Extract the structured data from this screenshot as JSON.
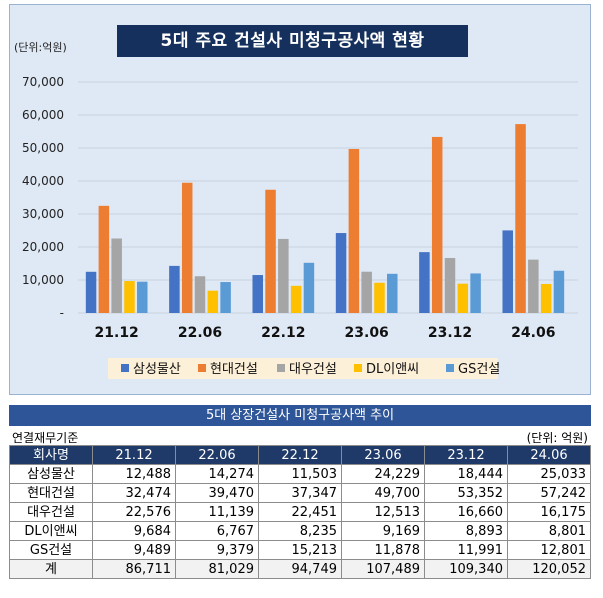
{
  "chart_data": {
    "type": "bar",
    "title": "5대 주요 건설사 미청구공사액 현황",
    "unit_label": "(단위:억원)",
    "xlabel": "",
    "ylabel": "",
    "ylim": [
      0,
      70000
    ],
    "y_ticks": [
      0,
      10000,
      20000,
      30000,
      40000,
      50000,
      60000,
      70000
    ],
    "y_tick_labels": [
      "-",
      "10,000",
      "20,000",
      "30,000",
      "40,000",
      "50,000",
      "60,000",
      "70,000"
    ],
    "categories": [
      "21.12",
      "22.06",
      "22.12",
      "23.06",
      "23.12",
      "24.06"
    ],
    "series": [
      {
        "name": "삼성물산",
        "color": "#4472c4",
        "values": [
          12488,
          14274,
          11503,
          24229,
          18444,
          25033
        ]
      },
      {
        "name": "현대건설",
        "color": "#ed7d31",
        "values": [
          32474,
          39470,
          37347,
          49700,
          53352,
          57242
        ]
      },
      {
        "name": "대우건설",
        "color": "#a5a5a5",
        "values": [
          22576,
          11139,
          22451,
          12513,
          16660,
          16175
        ]
      },
      {
        "name": "DL이앤씨",
        "color": "#ffc000",
        "values": [
          9684,
          6767,
          8235,
          9169,
          8893,
          8801
        ]
      },
      {
        "name": "GS건설",
        "color": "#5b9bd5",
        "values": [
          9489,
          9379,
          15213,
          11878,
          11991,
          12801
        ]
      }
    ],
    "grid": true,
    "legend": "bottom"
  },
  "table": {
    "title": "5대 상장건설사 미청구공사액 추이",
    "basis": "연결재무기준",
    "unit": "(단위: 억원)",
    "headers": [
      "회사명",
      "21.12",
      "22.06",
      "22.12",
      "23.06",
      "23.12",
      "24.06"
    ],
    "rows": [
      [
        "삼성물산",
        "12,488",
        "14,274",
        "11,503",
        "24,229",
        "18,444",
        "25,033"
      ],
      [
        "현대건설",
        "32,474",
        "39,470",
        "37,347",
        "49,700",
        "53,352",
        "57,242"
      ],
      [
        "대우건설",
        "22,576",
        "11,139",
        "22,451",
        "12,513",
        "16,660",
        "16,175"
      ],
      [
        "DL이앤씨",
        "9,684",
        "6,767",
        "8,235",
        "9,169",
        "8,893",
        "8,801"
      ],
      [
        "GS건설",
        "9,489",
        "9,379",
        "15,213",
        "11,878",
        "11,991",
        "12,801"
      ],
      [
        "계",
        "86,711",
        "81,029",
        "94,749",
        "107,489",
        "109,340",
        "120,052"
      ]
    ]
  }
}
